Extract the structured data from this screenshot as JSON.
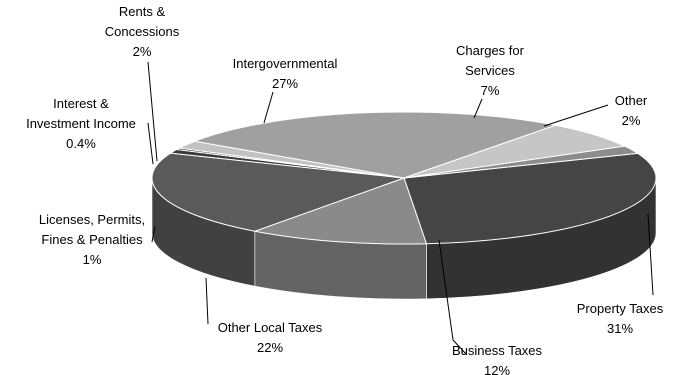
{
  "chart_data": {
    "type": "pie",
    "style": "3d-exploded-none",
    "title": "",
    "slices": [
      {
        "key": "property",
        "label_lines": [
          "Property Taxes"
        ],
        "pct_text": "31%",
        "value": 31,
        "color": "#454545"
      },
      {
        "key": "business",
        "label_lines": [
          "Business Taxes"
        ],
        "pct_text": "12%",
        "value": 12,
        "color": "#8a8a8a"
      },
      {
        "key": "other_local",
        "label_lines": [
          "Other Local Taxes"
        ],
        "pct_text": "22%",
        "value": 22,
        "color": "#5a5a5a"
      },
      {
        "key": "licenses",
        "label_lines": [
          "Licenses, Permits,",
          "Fines & Penalties"
        ],
        "pct_text": "1%",
        "value": 1,
        "color": "#3a3a3a"
      },
      {
        "key": "interest",
        "label_lines": [
          "Interest &",
          "Investment Income"
        ],
        "pct_text": "0.4%",
        "value": 0.4,
        "color": "#2e2e2e"
      },
      {
        "key": "rents",
        "label_lines": [
          "Rents &",
          "Concessions"
        ],
        "pct_text": "2%",
        "value": 2,
        "color": "#c2c2c2"
      },
      {
        "key": "intergov",
        "label_lines": [
          "Intergovernmental"
        ],
        "pct_text": "27%",
        "value": 27,
        "color": "#a0a0a0"
      },
      {
        "key": "charges",
        "label_lines": [
          "Charges for",
          "Services"
        ],
        "pct_text": "7%",
        "value": 7,
        "color": "#c6c6c6"
      },
      {
        "key": "other",
        "label_lines": [
          "Other"
        ],
        "pct_text": "2%",
        "value": 2,
        "color": "#8c8c8c"
      }
    ]
  }
}
